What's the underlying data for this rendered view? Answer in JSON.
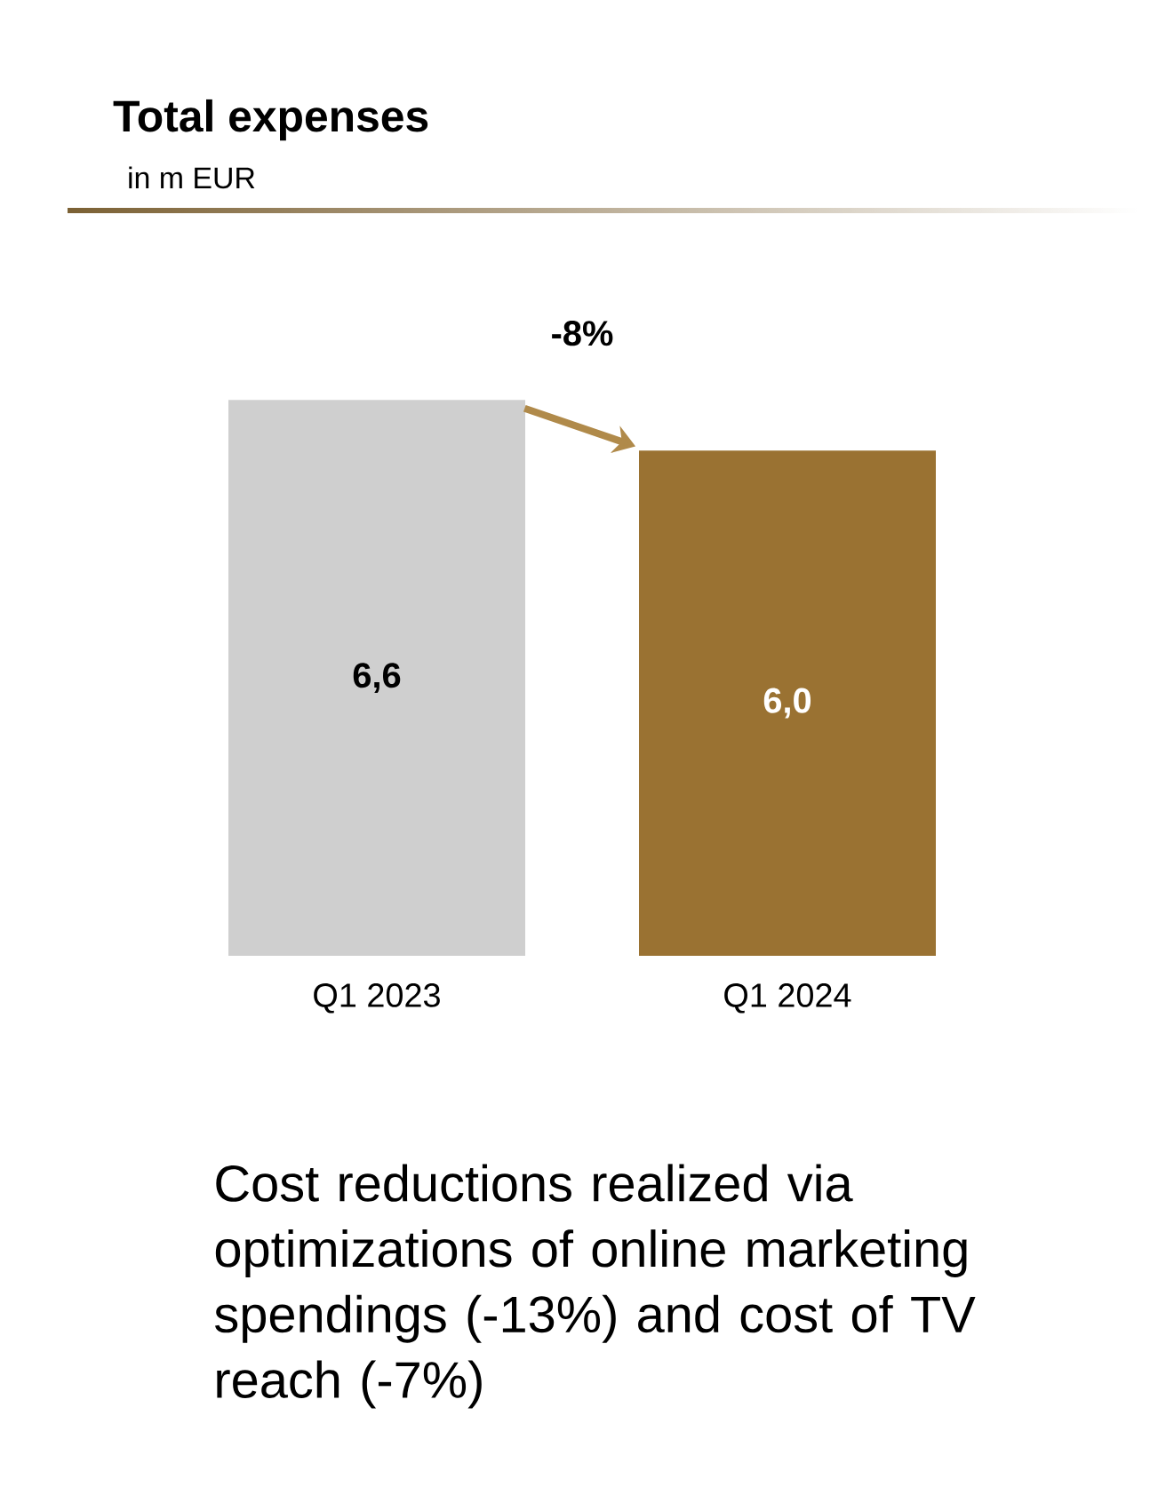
{
  "chart_data": {
    "type": "bar",
    "title": "Total expenses",
    "subtitle": "in m EUR",
    "categories": [
      "Q1 2023",
      "Q1 2024"
    ],
    "values": [
      6.6,
      6.0
    ],
    "colors": [
      "#cfcfcf",
      "#9a7232"
    ],
    "value_labels": [
      "6,6",
      "6,0"
    ],
    "annotations": [
      "-8%",
      "Cost reductions realized via optimizations of online marketing spendings (-13%) and cost of TV reach (-7%)"
    ]
  }
}
